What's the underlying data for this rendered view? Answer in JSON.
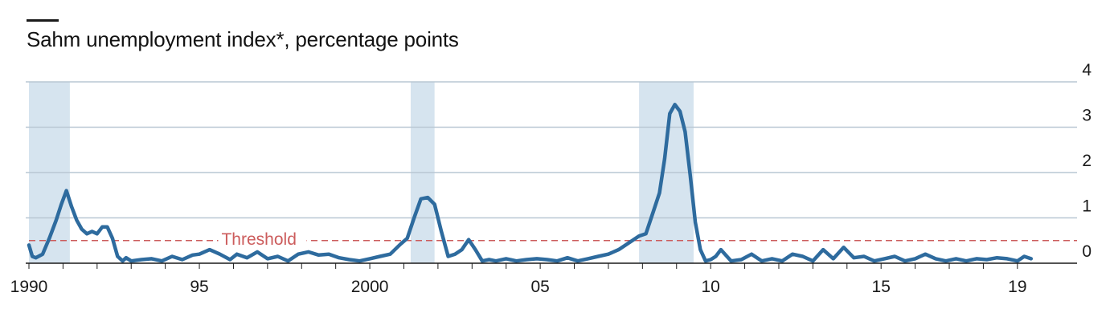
{
  "colors": {
    "line": "#2e6b9e",
    "recession": "#d6e4ef",
    "grid": "#b9c7d3",
    "threshold": "#cc5c5c",
    "text": "#1a1a1a"
  },
  "chart_data": {
    "type": "line",
    "title": "Sahm unemployment index*, percentage points",
    "xlabel": "",
    "ylabel": "",
    "xlim": [
      1990.0,
      2019.9
    ],
    "ylim": [
      0,
      4
    ],
    "y_axis_side": "right",
    "grid": true,
    "x_tick_values": [
      1990,
      1995,
      2000,
      2005,
      2010,
      2015,
      2019
    ],
    "x_tick_labels": [
      "1990",
      "95",
      "2000",
      "05",
      "10",
      "15",
      "19"
    ],
    "y_ticks": [
      0,
      1,
      2,
      3,
      4
    ],
    "threshold": {
      "label": "Threshold",
      "value": 0.5
    },
    "recessions": [
      {
        "start": 1990.0,
        "end": 1991.2
      },
      {
        "start": 2001.2,
        "end": 2001.9
      },
      {
        "start": 2007.9,
        "end": 2009.5
      }
    ],
    "series": [
      {
        "name": "Sahm unemployment index",
        "x": [
          1990.0,
          1990.1,
          1990.2,
          1990.4,
          1990.6,
          1990.8,
          1990.95,
          1991.1,
          1991.25,
          1991.4,
          1991.55,
          1991.7,
          1991.85,
          1992.0,
          1992.15,
          1992.3,
          1992.45,
          1992.6,
          1992.75,
          1992.85,
          1993.0,
          1993.3,
          1993.6,
          1993.9,
          1994.2,
          1994.5,
          1994.8,
          1995.0,
          1995.3,
          1995.6,
          1995.9,
          1996.1,
          1996.4,
          1996.7,
          1997.0,
          1997.3,
          1997.6,
          1997.9,
          1998.2,
          1998.5,
          1998.8,
          1999.1,
          1999.4,
          1999.7,
          2000.0,
          2000.3,
          2000.6,
          2000.9,
          2001.1,
          2001.3,
          2001.5,
          2001.7,
          2001.9,
          2002.1,
          2002.3,
          2002.5,
          2002.7,
          2002.9,
          2003.1,
          2003.3,
          2003.5,
          2003.7,
          2004.0,
          2004.3,
          2004.6,
          2004.9,
          2005.2,
          2005.5,
          2005.8,
          2006.1,
          2006.4,
          2006.7,
          2007.0,
          2007.3,
          2007.6,
          2007.9,
          2008.1,
          2008.3,
          2008.5,
          2008.65,
          2008.8,
          2008.95,
          2009.1,
          2009.25,
          2009.4,
          2009.55,
          2009.7,
          2009.85,
          2010.0,
          2010.15,
          2010.3,
          2010.6,
          2010.9,
          2011.2,
          2011.5,
          2011.8,
          2012.1,
          2012.4,
          2012.7,
          2013.0,
          2013.3,
          2013.6,
          2013.9,
          2014.2,
          2014.5,
          2014.8,
          2015.1,
          2015.4,
          2015.7,
          2016.0,
          2016.3,
          2016.6,
          2016.9,
          2017.2,
          2017.5,
          2017.8,
          2018.1,
          2018.4,
          2018.7,
          2019.0,
          2019.2,
          2019.4
        ],
        "values": [
          0.4,
          0.15,
          0.12,
          0.2,
          0.55,
          0.95,
          1.3,
          1.6,
          1.25,
          0.95,
          0.75,
          0.65,
          0.7,
          0.65,
          0.8,
          0.8,
          0.55,
          0.15,
          0.05,
          0.12,
          0.05,
          0.08,
          0.1,
          0.05,
          0.15,
          0.08,
          0.18,
          0.2,
          0.3,
          0.2,
          0.08,
          0.2,
          0.12,
          0.25,
          0.1,
          0.15,
          0.05,
          0.2,
          0.25,
          0.18,
          0.2,
          0.12,
          0.08,
          0.05,
          0.1,
          0.15,
          0.2,
          0.42,
          0.55,
          1.0,
          1.42,
          1.45,
          1.3,
          0.7,
          0.15,
          0.2,
          0.3,
          0.52,
          0.3,
          0.05,
          0.08,
          0.05,
          0.1,
          0.05,
          0.08,
          0.1,
          0.08,
          0.05,
          0.12,
          0.05,
          0.1,
          0.15,
          0.2,
          0.3,
          0.45,
          0.6,
          0.65,
          1.1,
          1.55,
          2.3,
          3.3,
          3.5,
          3.35,
          2.9,
          1.95,
          0.9,
          0.3,
          0.05,
          0.08,
          0.15,
          0.3,
          0.05,
          0.08,
          0.2,
          0.05,
          0.1,
          0.05,
          0.2,
          0.15,
          0.05,
          0.3,
          0.1,
          0.35,
          0.12,
          0.15,
          0.05,
          0.1,
          0.15,
          0.05,
          0.1,
          0.2,
          0.1,
          0.05,
          0.1,
          0.05,
          0.1,
          0.08,
          0.12,
          0.1,
          0.05,
          0.15,
          0.1
        ]
      }
    ]
  }
}
